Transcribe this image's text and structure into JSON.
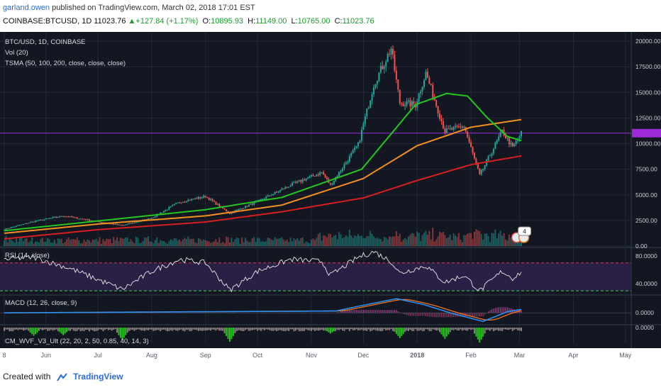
{
  "header": {
    "user": "garland.owen",
    "published": "published on TradingView.com, March 02, 2018 17:01 EST",
    "symbol": "COINBASE:BTCUSD, 1D",
    "last": "11023.76",
    "change_arrow": "▲",
    "change": "+127.84 (+1.17%)",
    "open_label": "O:",
    "open": "10895.93",
    "high_label": "H:",
    "high": "11149.00",
    "low_label": "L:",
    "low": "10765.00",
    "close_label": "C:",
    "close": "11023.76"
  },
  "footer": {
    "created_with": "Created with",
    "brand": "TradingView"
  },
  "colors": {
    "background": "#131722",
    "grid": "#222838",
    "up": "#26a69a",
    "down": "#ef5350",
    "sma50": "#22c81e",
    "sma100": "#f5901e",
    "sma200": "#d9201e",
    "rsi": "#e8e8e8",
    "rsi_band": "#2a1f45",
    "macd": "#2e8ff0",
    "signal": "#f07820",
    "wvf_up": "#26c31c",
    "wvf_down": "#8a7f80",
    "resistance": "#9b2bd6"
  },
  "chart_data": [
    {
      "type": "candlestick",
      "title": "BTC/USD, 1D, COINBASE",
      "indicators": [
        "Vol (20)",
        "TSMA (50, 100, 200, close, close, close)"
      ],
      "x_ticks": [
        "8",
        "Jun",
        "Jul",
        "Aug",
        "Sep",
        "Oct",
        "Nov",
        "Dec",
        "2018",
        "Feb",
        "Mar",
        "Apr",
        "May"
      ],
      "y_ticks": [
        "20000.00",
        "17500.00",
        "15000.00",
        "12500.00",
        "10000.00",
        "7500.00",
        "5000.00",
        "2500.00",
        "0.00"
      ],
      "ylim": [
        0,
        20700
      ],
      "resistance_level": 11023.76,
      "price_anchors": [
        [
          "2017-05-08",
          1650
        ],
        [
          "2017-05-25",
          2400
        ],
        [
          "2017-06-11",
          2950
        ],
        [
          "2017-06-25",
          2550
        ],
        [
          "2017-07-15",
          2000
        ],
        [
          "2017-08-01",
          2750
        ],
        [
          "2017-08-17",
          4300
        ],
        [
          "2017-09-01",
          4850
        ],
        [
          "2017-09-15",
          3200
        ],
        [
          "2017-10-01",
          4350
        ],
        [
          "2017-10-20",
          5950
        ],
        [
          "2017-11-07",
          7200
        ],
        [
          "2017-11-12",
          5950
        ],
        [
          "2017-11-28",
          9900
        ],
        [
          "2017-12-07",
          15800
        ],
        [
          "2017-12-17",
          19300
        ],
        [
          "2017-12-22",
          14000
        ],
        [
          "2017-12-31",
          13800
        ],
        [
          "2018-01-06",
          16900
        ],
        [
          "2018-01-17",
          11200
        ],
        [
          "2018-01-28",
          11700
        ],
        [
          "2018-02-06",
          6900
        ],
        [
          "2018-02-19",
          11200
        ],
        [
          "2018-02-25",
          9600
        ],
        [
          "2018-03-02",
          11023
        ]
      ],
      "sma_anchors": {
        "sma50": [
          [
            "2017-05-08",
            1500
          ],
          [
            "2017-07-01",
            2450
          ],
          [
            "2017-09-01",
            3550
          ],
          [
            "2017-10-15",
            4750
          ],
          [
            "2017-11-30",
            7500
          ],
          [
            "2017-12-31",
            13800
          ],
          [
            "2018-01-18",
            14900
          ],
          [
            "2018-01-30",
            14650
          ],
          [
            "2018-02-10",
            12600
          ],
          [
            "2018-02-22",
            10700
          ],
          [
            "2018-03-02",
            10300
          ]
        ],
        "sma100": [
          [
            "2017-05-08",
            1250
          ],
          [
            "2017-07-01",
            2150
          ],
          [
            "2017-09-01",
            2950
          ],
          [
            "2017-10-15",
            4000
          ],
          [
            "2017-12-01",
            6600
          ],
          [
            "2018-01-01",
            9800
          ],
          [
            "2018-02-01",
            11600
          ],
          [
            "2018-03-02",
            12350
          ]
        ],
        "sma200": [
          [
            "2017-05-08",
            700
          ],
          [
            "2017-07-01",
            1600
          ],
          [
            "2017-09-01",
            2350
          ],
          [
            "2017-10-15",
            3350
          ],
          [
            "2017-12-01",
            4700
          ],
          [
            "2018-01-01",
            6400
          ],
          [
            "2018-02-01",
            7950
          ],
          [
            "2018-03-02",
            8800
          ]
        ]
      }
    },
    {
      "type": "line",
      "title": "RSI (14, close)",
      "y_ticks": [
        "80.0000",
        "40.0000"
      ],
      "ylim": [
        25,
        90
      ],
      "band": [
        30,
        70
      ],
      "anchors": [
        [
          "2017-05-08",
          75
        ],
        [
          "2017-05-25",
          78
        ],
        [
          "2017-06-15",
          62
        ],
        [
          "2017-07-15",
          32
        ],
        [
          "2017-08-01",
          58
        ],
        [
          "2017-08-17",
          75
        ],
        [
          "2017-09-01",
          70
        ],
        [
          "2017-09-15",
          31
        ],
        [
          "2017-10-01",
          58
        ],
        [
          "2017-10-20",
          75
        ],
        [
          "2017-11-07",
          72
        ],
        [
          "2017-11-12",
          52
        ],
        [
          "2017-11-28",
          78
        ],
        [
          "2017-12-07",
          86
        ],
        [
          "2017-12-17",
          72
        ],
        [
          "2017-12-22",
          55
        ],
        [
          "2018-01-06",
          66
        ],
        [
          "2018-01-17",
          42
        ],
        [
          "2018-01-28",
          52
        ],
        [
          "2018-02-06",
          30
        ],
        [
          "2018-02-19",
          58
        ],
        [
          "2018-02-25",
          48
        ],
        [
          "2018-03-02",
          57
        ]
      ]
    },
    {
      "type": "line",
      "title": "MACD (12, 26, close, 9)",
      "y_ticks": [
        "0.0000"
      ],
      "ylim": [
        -1500,
        2200
      ],
      "anchors": [
        [
          "2017-05-08",
          0
        ],
        [
          "2017-11-15",
          250
        ],
        [
          "2017-12-05",
          1200
        ],
        [
          "2017-12-20",
          1900
        ],
        [
          "2018-01-05",
          1100
        ],
        [
          "2018-01-20",
          0
        ],
        [
          "2018-02-08",
          -1150
        ],
        [
          "2018-02-22",
          150
        ],
        [
          "2018-03-02",
          450
        ]
      ]
    },
    {
      "type": "bar",
      "title": "CM_WVF_V3_Ult (22, 20, 2, 50, 0.85, 40, 14, 3)",
      "y_ticks": [
        "0.0000"
      ],
      "spikes": [
        [
          "2017-05-25",
          0.55
        ],
        [
          "2017-06-11",
          0.5
        ],
        [
          "2017-07-15",
          0.85
        ],
        [
          "2017-09-15",
          0.95
        ],
        [
          "2017-11-12",
          0.4
        ],
        [
          "2017-12-22",
          0.7
        ],
        [
          "2018-01-17",
          0.75
        ],
        [
          "2018-02-06",
          1.0
        ]
      ]
    }
  ],
  "badge": {
    "count": "4"
  }
}
